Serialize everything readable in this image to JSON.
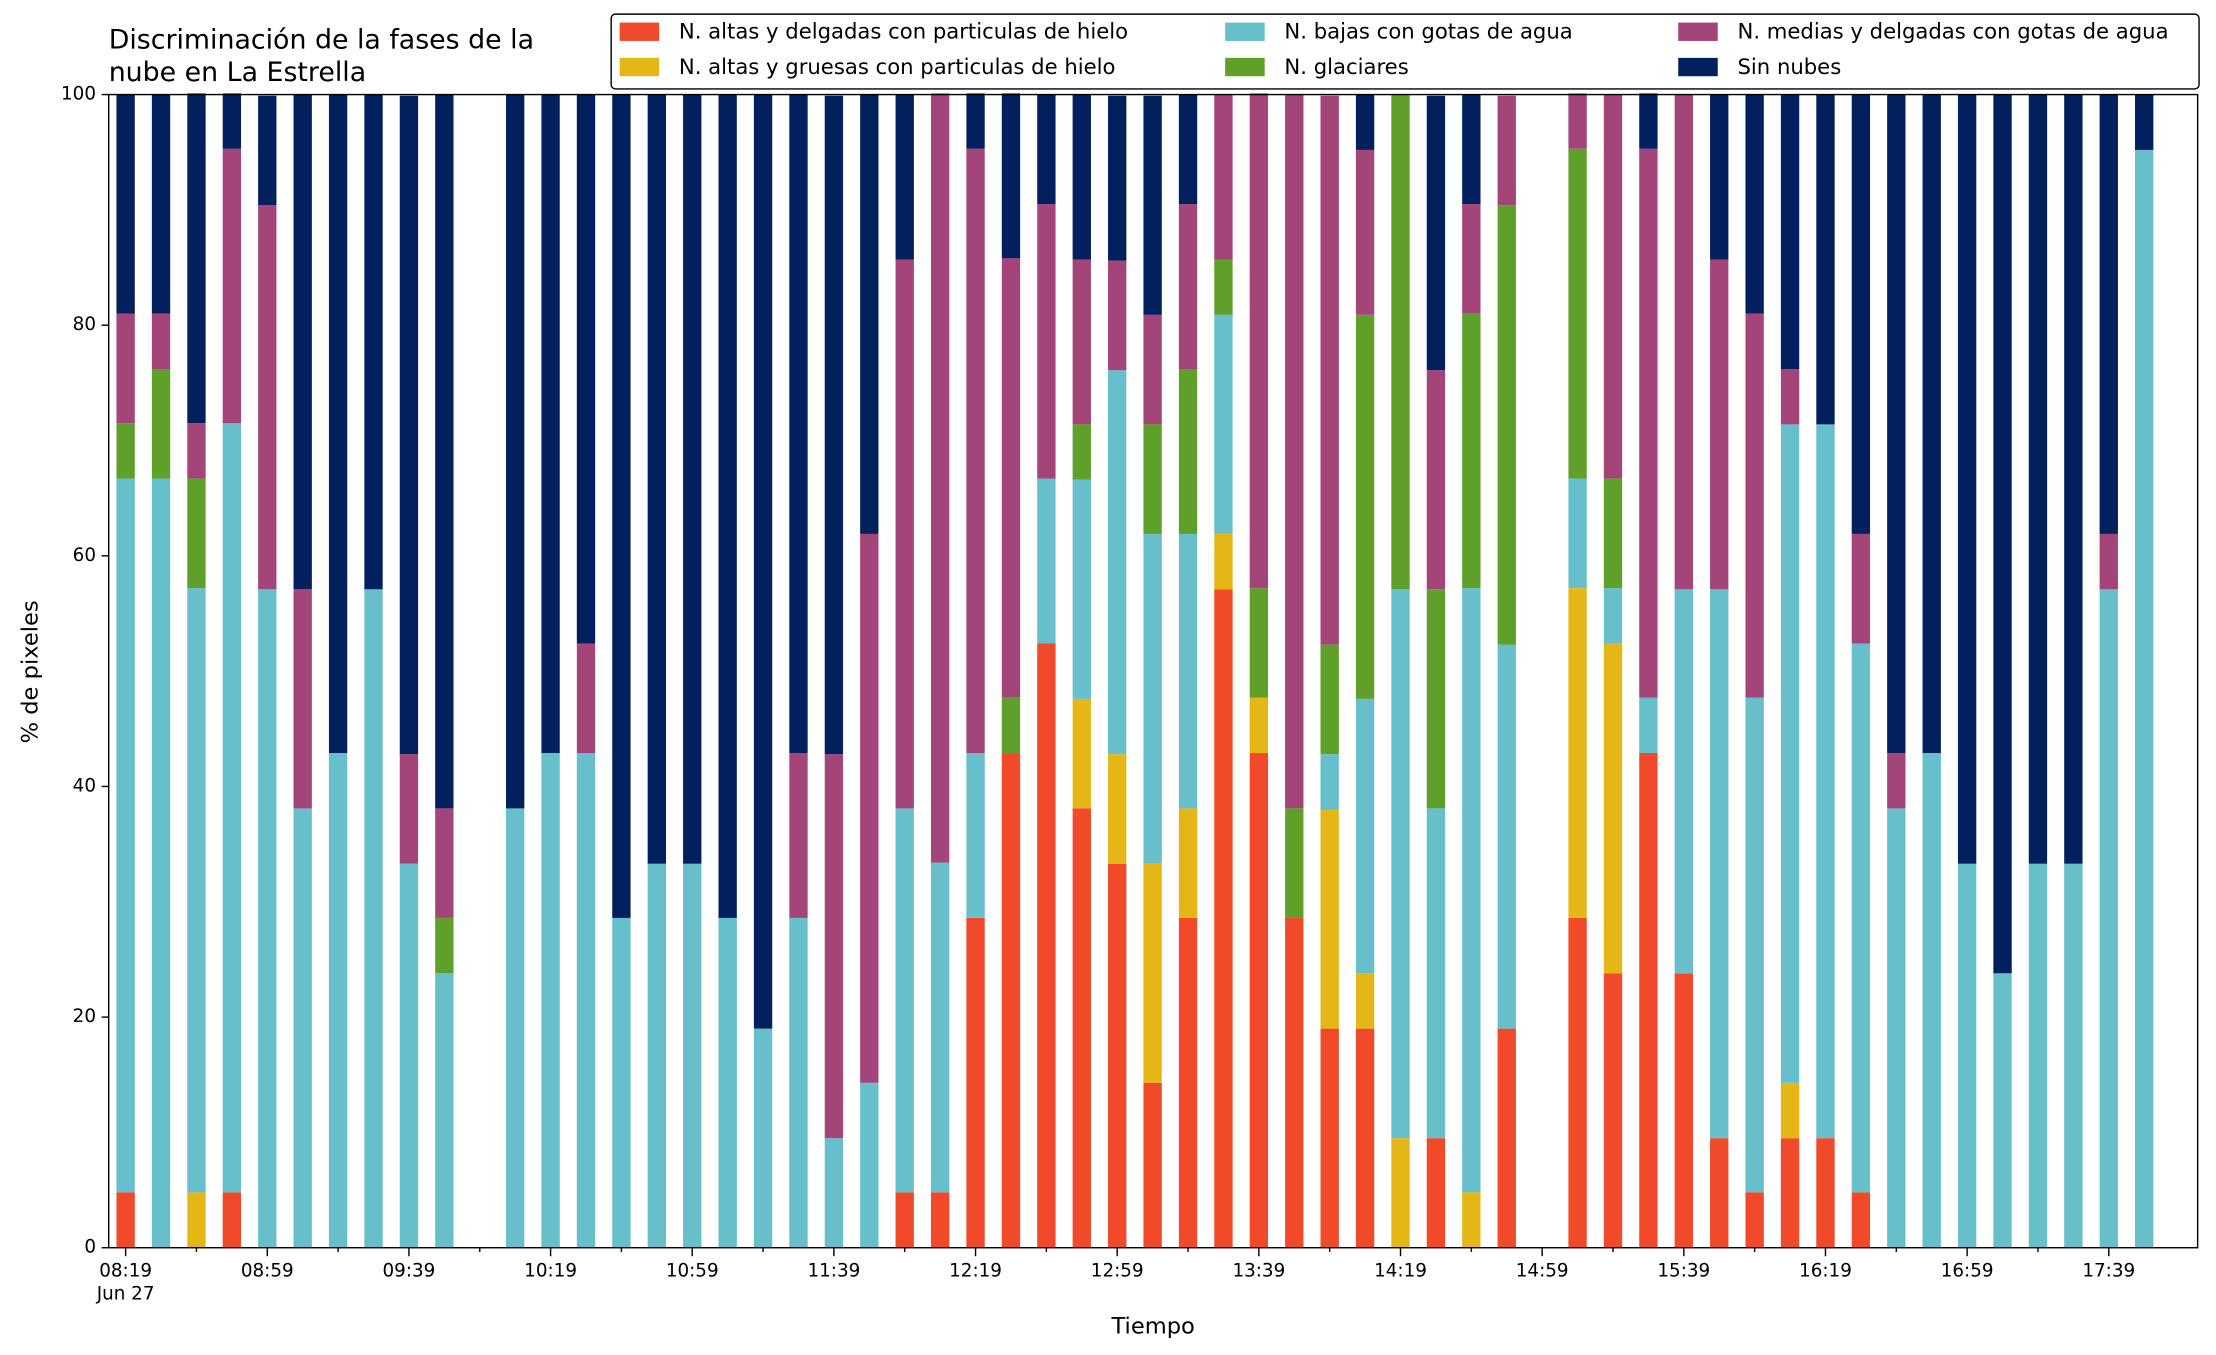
{
  "chart_data": {
    "type": "stacked_bar",
    "title": [
      "Discriminación de la fases de la",
      "nube en La Estrella"
    ],
    "xlabel": "Tiempo",
    "ylabel": "% de pixeles",
    "date_label": "Jun 27",
    "categories": [
      "08:19",
      null,
      null,
      null,
      "08:59",
      null,
      null,
      null,
      "09:39",
      null,
      null,
      null,
      "10:19",
      null,
      null,
      null,
      "10:59",
      null,
      null,
      null,
      "11:39",
      null,
      null,
      null,
      "12:19",
      null,
      null,
      null,
      "12:59",
      null,
      null,
      null,
      "13:39",
      null,
      null,
      null,
      "14:19",
      null,
      null,
      null,
      "14:59",
      null,
      null,
      null,
      "15:39",
      null,
      null,
      null,
      "16:19",
      null,
      null,
      null,
      "16:59",
      null,
      null,
      null,
      "17:39",
      null
    ],
    "ylim": [
      0,
      100
    ],
    "yticks": [
      0,
      20,
      40,
      60,
      80,
      100
    ],
    "grid": false,
    "legend": "top",
    "series": [
      {
        "name": "N. altas y delgadas con particulas de hielo",
        "color": "#f04a2a",
        "values": [
          4.8,
          0,
          0,
          4.8,
          0,
          0,
          0,
          0,
          0,
          0,
          null,
          0,
          0,
          0,
          0,
          0,
          0,
          0,
          0,
          0,
          0,
          0,
          4.8,
          4.8,
          28.6,
          42.9,
          52.4,
          38.1,
          33.3,
          14.3,
          28.6,
          57.1,
          42.9,
          28.6,
          19.0,
          19.0,
          0,
          9.5,
          0,
          19.0,
          null,
          28.6,
          23.8,
          42.9,
          23.8,
          9.5,
          4.8,
          9.5,
          9.5,
          4.8,
          0,
          0,
          0,
          0,
          0,
          0,
          0,
          0
        ]
      },
      {
        "name": "N. altas y gruesas con particulas de hielo",
        "color": "#e5b716",
        "values": [
          0,
          0,
          4.8,
          0,
          0,
          0,
          0,
          0,
          0,
          0,
          null,
          0,
          0,
          0,
          0,
          0,
          0,
          0,
          0,
          0,
          0,
          0,
          0,
          0,
          0,
          0,
          0,
          9.5,
          9.5,
          19.0,
          9.5,
          4.8,
          4.8,
          0,
          19.0,
          4.8,
          9.5,
          0,
          4.8,
          0,
          null,
          28.6,
          28.6,
          0,
          0,
          0,
          0,
          4.8,
          0,
          0,
          0,
          0,
          0,
          0,
          0,
          0,
          0,
          0
        ]
      },
      {
        "name": "N. bajas con gotas de agua",
        "color": "#66bfca",
        "values": [
          61.9,
          66.7,
          52.4,
          66.7,
          57.1,
          38.1,
          42.9,
          57.1,
          33.3,
          23.8,
          null,
          38.1,
          42.9,
          42.9,
          28.6,
          33.3,
          33.3,
          28.6,
          19.0,
          28.6,
          9.5,
          14.3,
          33.3,
          28.6,
          14.3,
          0,
          14.3,
          19.0,
          33.3,
          28.6,
          23.8,
          19.0,
          0,
          0,
          4.8,
          23.8,
          47.6,
          28.6,
          52.4,
          33.3,
          null,
          9.5,
          4.8,
          4.8,
          33.3,
          47.6,
          42.9,
          57.1,
          61.9,
          47.6,
          38.1,
          42.9,
          33.3,
          23.8,
          33.3,
          33.3,
          57.1,
          95.2
        ]
      },
      {
        "name": "N. glaciares",
        "color": "#5fa02b",
        "values": [
          4.8,
          9.5,
          9.5,
          0,
          0,
          0,
          0,
          0,
          0,
          4.8,
          null,
          0,
          0,
          0,
          0,
          0,
          0,
          0,
          0,
          0,
          0,
          0,
          0,
          0,
          0,
          4.8,
          0,
          4.8,
          0,
          9.5,
          14.3,
          4.8,
          9.5,
          9.5,
          9.5,
          33.3,
          42.9,
          19.0,
          23.8,
          38.1,
          null,
          28.6,
          9.5,
          0,
          0,
          0,
          0,
          0,
          0,
          0,
          0,
          0,
          0,
          0,
          0,
          0,
          0,
          0
        ]
      },
      {
        "name": "N. medias y delgadas con gotas de agua",
        "color": "#a4457a",
        "values": [
          9.5,
          4.8,
          4.8,
          23.8,
          33.3,
          19.0,
          0,
          0,
          9.5,
          9.5,
          null,
          0,
          0,
          9.5,
          0,
          0,
          0,
          0,
          0,
          14.3,
          33.3,
          47.6,
          47.6,
          66.7,
          52.4,
          38.1,
          23.8,
          14.3,
          9.5,
          9.5,
          14.3,
          14.3,
          42.9,
          61.9,
          47.6,
          14.3,
          0,
          19.0,
          9.5,
          9.5,
          null,
          4.8,
          33.3,
          47.6,
          42.9,
          28.6,
          33.3,
          4.8,
          0,
          9.5,
          4.8,
          0,
          0,
          0,
          0,
          0,
          4.8,
          0
        ]
      },
      {
        "name": "Sin nubes",
        "color": "#03205e",
        "values": [
          19.0,
          19.0,
          28.6,
          4.8,
          9.5,
          42.9,
          57.1,
          42.9,
          57.1,
          61.9,
          null,
          61.9,
          57.1,
          47.6,
          71.4,
          66.7,
          66.7,
          71.4,
          81.0,
          57.1,
          57.1,
          38.1,
          14.3,
          0,
          4.8,
          14.3,
          9.5,
          14.3,
          14.3,
          19.0,
          9.5,
          0,
          0,
          0,
          0,
          4.8,
          0,
          23.8,
          9.5,
          0,
          null,
          0,
          0,
          4.8,
          0,
          14.3,
          19.0,
          23.8,
          28.6,
          38.1,
          57.1,
          57.1,
          66.7,
          76.2,
          66.7,
          66.7,
          38.1,
          4.8
        ]
      }
    ]
  }
}
